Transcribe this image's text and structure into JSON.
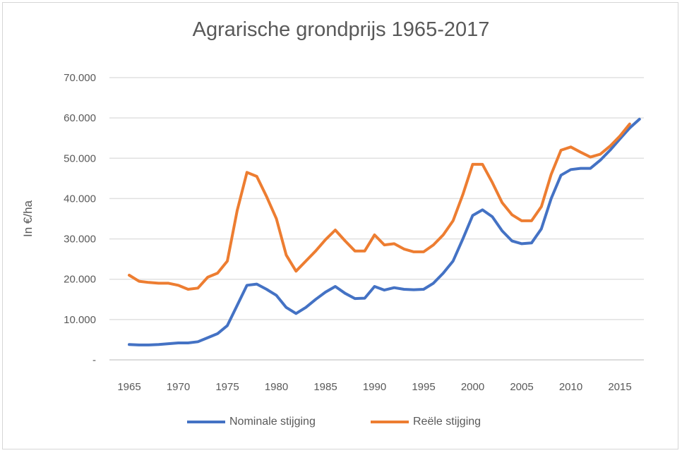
{
  "chart_data": {
    "type": "line",
    "title": "Agrarische grondprijs 1965-2017",
    "xlabel": "",
    "ylabel": "In €/ha",
    "ylim": [
      0,
      70000
    ],
    "yticks": [
      0,
      10000,
      20000,
      30000,
      40000,
      50000,
      60000,
      70000
    ],
    "ytick_labels": [
      "-",
      "10.000",
      "20.000",
      "30.000",
      "40.000",
      "50.000",
      "60.000",
      "70.000"
    ],
    "xtick_labels": [
      "1965",
      "1970",
      "1975",
      "1980",
      "1985",
      "1990",
      "1995",
      "2000",
      "2005",
      "2010",
      "2015"
    ],
    "grid": true,
    "legend_position": "bottom",
    "x": [
      1965,
      1966,
      1967,
      1968,
      1969,
      1970,
      1971,
      1972,
      1973,
      1974,
      1975,
      1976,
      1977,
      1978,
      1979,
      1980,
      1981,
      1982,
      1983,
      1984,
      1985,
      1986,
      1987,
      1988,
      1989,
      1990,
      1991,
      1992,
      1993,
      1994,
      1995,
      1996,
      1997,
      1998,
      1999,
      2000,
      2001,
      2002,
      2003,
      2004,
      2005,
      2006,
      2007,
      2008,
      2009,
      2010,
      2011,
      2012,
      2013,
      2014,
      2015,
      2016,
      2017
    ],
    "series": [
      {
        "name": "Nominale stijging",
        "color": "#4472c4",
        "values": [
          3800,
          3700,
          3700,
          3800,
          4000,
          4200,
          4200,
          4500,
          5500,
          6500,
          8500,
          13500,
          18500,
          18800,
          17500,
          16000,
          13000,
          11500,
          13000,
          15000,
          16800,
          18200,
          16500,
          15200,
          15300,
          18200,
          17300,
          17900,
          17500,
          17400,
          17500,
          19000,
          21500,
          24500,
          30000,
          35800,
          37200,
          35500,
          32000,
          29500,
          28800,
          29000,
          32500,
          40000,
          45800,
          47200,
          47500,
          47500,
          49500,
          52000,
          54800,
          57500,
          59700
        ]
      },
      {
        "name": "Reële stijging",
        "color": "#ed7d31",
        "values": [
          21000,
          19500,
          19200,
          19000,
          19000,
          18500,
          17500,
          17800,
          20500,
          21500,
          24500,
          37000,
          46500,
          45500,
          40500,
          35000,
          26000,
          22000,
          24500,
          27000,
          29800,
          32200,
          29500,
          27000,
          27000,
          31000,
          28500,
          28800,
          27500,
          26800,
          26800,
          28500,
          31000,
          34500,
          41000,
          48500,
          48500,
          44000,
          39000,
          36000,
          34500,
          34500,
          38000,
          46000,
          52000,
          52800,
          51500,
          50300,
          51000,
          53000,
          55500,
          58500,
          null
        ]
      }
    ]
  }
}
